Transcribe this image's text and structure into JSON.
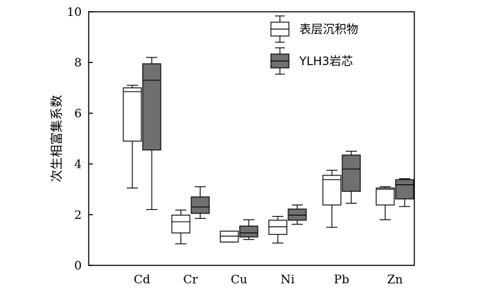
{
  "chart_data": {
    "type": "boxplot",
    "ylabel": "次生相富集系数",
    "ylim": [
      0,
      10
    ],
    "yticks": [
      0,
      2,
      4,
      6,
      8,
      10
    ],
    "grid": false,
    "legend_position": "top-right",
    "categories": [
      "Cd",
      "Cr",
      "Cu",
      "Ni",
      "Pb",
      "Zn"
    ],
    "series": [
      {
        "name": "表层沉积物",
        "color": "#ffffff",
        "boxes": [
          {
            "min": 3.05,
            "q1": 4.9,
            "median": 6.85,
            "q3": 7.0,
            "max": 7.1
          },
          {
            "min": 0.85,
            "q1": 1.28,
            "median": 1.72,
            "q3": 1.98,
            "max": 2.18
          },
          {
            "min": 0.92,
            "q1": 0.92,
            "median": 1.15,
            "q3": 1.35,
            "max": 1.35
          },
          {
            "min": 0.88,
            "q1": 1.22,
            "median": 1.52,
            "q3": 1.78,
            "max": 1.93
          },
          {
            "min": 1.5,
            "q1": 2.38,
            "median": 3.38,
            "q3": 3.55,
            "max": 3.75
          },
          {
            "min": 1.8,
            "q1": 2.38,
            "median": 3.0,
            "q3": 3.05,
            "max": 3.1
          }
        ]
      },
      {
        "name": "YLH3岩芯",
        "color": "#707070",
        "boxes": [
          {
            "min": 2.2,
            "q1": 4.55,
            "median": 7.3,
            "q3": 7.95,
            "max": 8.2
          },
          {
            "min": 1.85,
            "q1": 2.05,
            "median": 2.3,
            "q3": 2.7,
            "max": 3.1
          },
          {
            "min": 1.02,
            "q1": 1.12,
            "median": 1.28,
            "q3": 1.55,
            "max": 1.8
          },
          {
            "min": 1.62,
            "q1": 1.78,
            "median": 1.98,
            "q3": 2.22,
            "max": 2.38
          },
          {
            "min": 2.45,
            "q1": 2.92,
            "median": 3.8,
            "q3": 4.35,
            "max": 4.5
          },
          {
            "min": 2.32,
            "q1": 2.62,
            "median": 3.18,
            "q3": 3.38,
            "max": 3.42
          }
        ]
      }
    ]
  }
}
